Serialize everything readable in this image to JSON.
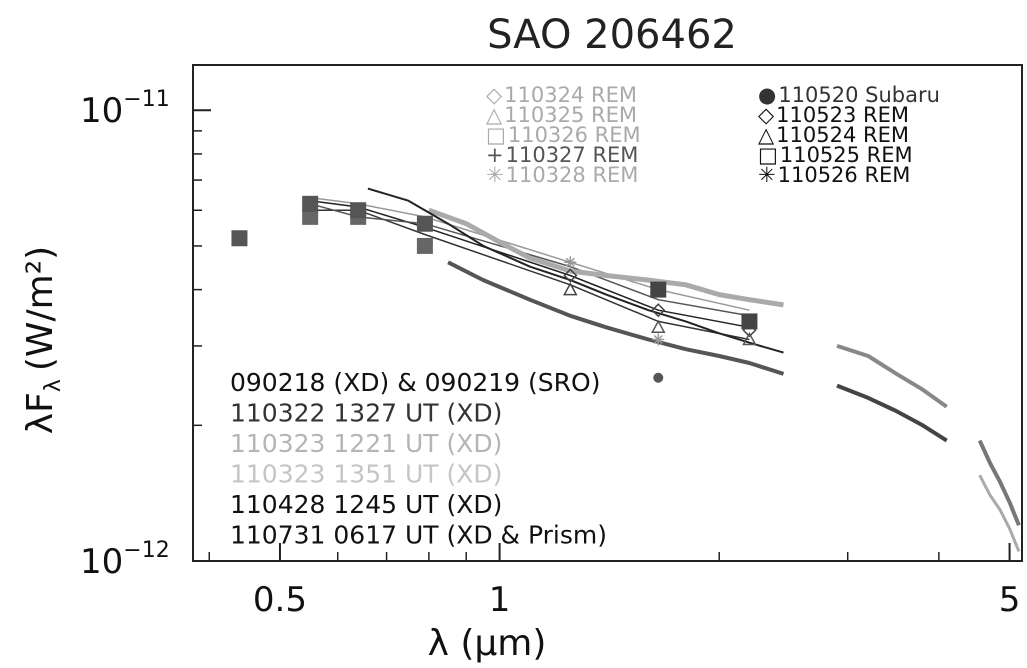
{
  "chart_data": {
    "type": "line",
    "title": "SAO 206462",
    "xlabel": "λ (μm)",
    "ylabel": "λF",
    "ylabel_sub": "λ",
    "ylabel_unit": "(W/m²)",
    "x_scale": "log",
    "y_scale": "log",
    "xlim": [
      0.38,
      5.2
    ],
    "ylim": [
      1e-12,
      1.26e-11
    ],
    "x_ticks": [
      {
        "value": 0.5,
        "label": "0.5"
      },
      {
        "value": 1,
        "label": "1"
      },
      {
        "value": 5,
        "label": "5"
      }
    ],
    "y_ticks": [
      {
        "value": 1e-11,
        "mantissa": "10",
        "exponent": "−11"
      },
      {
        "value": 1e-12,
        "mantissa": "10",
        "exponent": "−12"
      }
    ],
    "photometry_legend_left": [
      {
        "symbol": "◇",
        "label": "110324 REM",
        "color": "#aaaaaa"
      },
      {
        "symbol": "△",
        "label": "110325 REM",
        "color": "#aaaaaa"
      },
      {
        "symbol": "□",
        "label": "110326 REM",
        "color": "#aaaaaa"
      },
      {
        "symbol": "+",
        "label": "110327 REM",
        "color": "#555555"
      },
      {
        "symbol": "✳",
        "label": "110328 REM",
        "color": "#aaaaaa"
      }
    ],
    "photometry_legend_right": [
      {
        "symbol": "●",
        "label": "110520 Subaru",
        "color": "#333333"
      },
      {
        "symbol": "◇",
        "label": "110523 REM",
        "color": "#111111"
      },
      {
        "symbol": "△",
        "label": "110524 REM",
        "color": "#111111"
      },
      {
        "symbol": "□",
        "label": "110525 REM",
        "color": "#111111"
      },
      {
        "symbol": "✳",
        "label": "110526 REM",
        "color": "#111111"
      }
    ],
    "spectra_legend": [
      {
        "label": "090218 (XD) & 090219 (SRO)",
        "color": "#111111"
      },
      {
        "label": "110322 1327 UT (XD)",
        "color": "#333333"
      },
      {
        "label": "110323 1221 UT (XD)",
        "color": "#b5b5b5"
      },
      {
        "label": "110323 1351 UT (XD)",
        "color": "#c5c5c5"
      },
      {
        "label": "110428 1245 UT (XD)",
        "color": "#111111"
      },
      {
        "label": "110731 0617 UT (XD & Prism)",
        "color": "#111111"
      }
    ],
    "photometry_points": [
      {
        "x": 0.44,
        "y": 5.2e-12,
        "marker": "square",
        "color": "#555555"
      },
      {
        "x": 0.55,
        "y": 5.8e-12,
        "marker": "square",
        "color": "#666666"
      },
      {
        "x": 0.55,
        "y": 6.2e-12,
        "marker": "square",
        "color": "#555555"
      },
      {
        "x": 0.64,
        "y": 5.8e-12,
        "marker": "square",
        "color": "#666666"
      },
      {
        "x": 0.64,
        "y": 6e-12,
        "marker": "square",
        "color": "#555555"
      },
      {
        "x": 0.79,
        "y": 5e-12,
        "marker": "square",
        "color": "#666666"
      },
      {
        "x": 0.79,
        "y": 5.6e-12,
        "marker": "square",
        "color": "#555555"
      },
      {
        "x": 1.25,
        "y": 4.3e-12,
        "marker": "diamond",
        "color": "#444444"
      },
      {
        "x": 1.25,
        "y": 4e-12,
        "marker": "triangle",
        "color": "#444444"
      },
      {
        "x": 1.25,
        "y": 4.6e-12,
        "marker": "asterisk",
        "color": "#999999"
      },
      {
        "x": 1.65,
        "y": 4e-12,
        "marker": "square",
        "color": "#444444"
      },
      {
        "x": 1.65,
        "y": 3.6e-12,
        "marker": "diamond",
        "color": "#444444"
      },
      {
        "x": 1.65,
        "y": 3.3e-12,
        "marker": "triangle",
        "color": "#555555"
      },
      {
        "x": 1.65,
        "y": 3.1e-12,
        "marker": "asterisk",
        "color": "#999999"
      },
      {
        "x": 1.65,
        "y": 2.55e-12,
        "marker": "circle",
        "color": "#555555"
      },
      {
        "x": 2.2,
        "y": 3.4e-12,
        "marker": "square",
        "color": "#444444"
      },
      {
        "x": 2.2,
        "y": 3.25e-12,
        "marker": "diamond",
        "color": "#444444"
      },
      {
        "x": 2.2,
        "y": 3.1e-12,
        "marker": "triangle",
        "color": "#555555"
      }
    ],
    "phot_lines": [
      {
        "color": "#222222",
        "x": [
          0.55,
          0.64,
          0.79,
          1.25,
          1.65,
          2.2
        ],
        "y": [
          6.3e-12,
          6.1e-12,
          5.5e-12,
          4.3e-12,
          3.6e-12,
          3.3e-12
        ]
      },
      {
        "color": "#333333",
        "x": [
          0.55,
          0.64,
          0.79,
          1.25,
          1.65,
          2.2
        ],
        "y": [
          6e-12,
          6e-12,
          5.3e-12,
          4.1e-12,
          3.4e-12,
          3.1e-12
        ]
      },
      {
        "color": "#555555",
        "x": [
          0.55,
          0.64,
          0.79,
          1.25,
          1.65,
          2.2
        ],
        "y": [
          6.2e-12,
          5.8e-12,
          5.6e-12,
          4.5e-12,
          3.8e-12,
          3.5e-12
        ]
      },
      {
        "color": "#999999",
        "x": [
          0.55,
          0.64,
          0.79,
          1.25,
          1.65,
          2.2
        ],
        "y": [
          6.4e-12,
          6.2e-12,
          5.8e-12,
          4.6e-12,
          4e-12,
          3.6e-12
        ]
      }
    ],
    "series": [
      {
        "color": "#aaaaaa",
        "width": 5,
        "x": [
          0.8,
          0.9,
          1.0,
          1.1,
          1.25,
          1.4,
          1.6,
          1.8,
          2.0,
          2.2,
          2.45
        ],
        "y": [
          6e-12,
          5.6e-12,
          5.1e-12,
          4.7e-12,
          4.4e-12,
          4.3e-12,
          4.2e-12,
          4.1e-12,
          3.9e-12,
          3.8e-12,
          3.7e-12
        ]
      },
      {
        "color": "#222222",
        "width": 2,
        "x": [
          0.66,
          0.75,
          0.85,
          0.95,
          1.1,
          1.25,
          1.4,
          1.6,
          1.8,
          2.0,
          2.2,
          2.45
        ],
        "y": [
          6.7e-12,
          6.3e-12,
          5.6e-12,
          5e-12,
          4.5e-12,
          4.2e-12,
          3.9e-12,
          3.6e-12,
          3.4e-12,
          3.2e-12,
          3.05e-12,
          2.9e-12
        ]
      },
      {
        "color": "#555555",
        "width": 4,
        "x": [
          0.85,
          0.95,
          1.1,
          1.25,
          1.4,
          1.6,
          1.8,
          2.0,
          2.2,
          2.45
        ],
        "y": [
          4.6e-12,
          4.2e-12,
          3.8e-12,
          3.5e-12,
          3.3e-12,
          3.1e-12,
          2.95e-12,
          2.85e-12,
          2.75e-12,
          2.6e-12
        ]
      },
      {
        "color": "#888888",
        "width": 4,
        "x": [
          2.9,
          3.2,
          3.5,
          3.8,
          4.1
        ],
        "y": [
          3e-12,
          2.85e-12,
          2.6e-12,
          2.4e-12,
          2.2e-12
        ]
      },
      {
        "color": "#444444",
        "width": 4,
        "x": [
          2.9,
          3.2,
          3.5,
          3.8,
          4.1
        ],
        "y": [
          2.45e-12,
          2.3e-12,
          2.15e-12,
          2e-12,
          1.85e-12
        ]
      },
      {
        "color": "#777777",
        "width": 4,
        "x": [
          4.55,
          4.7,
          4.85,
          5.0,
          5.15
        ],
        "y": [
          1.85e-12,
          1.65e-12,
          1.5e-12,
          1.35e-12,
          1.2e-12
        ]
      },
      {
        "color": "#aaaaaa",
        "width": 3,
        "x": [
          4.55,
          4.7,
          4.85,
          5.0,
          5.15
        ],
        "y": [
          1.55e-12,
          1.4e-12,
          1.3e-12,
          1.18e-12,
          1.05e-12
        ]
      }
    ]
  }
}
